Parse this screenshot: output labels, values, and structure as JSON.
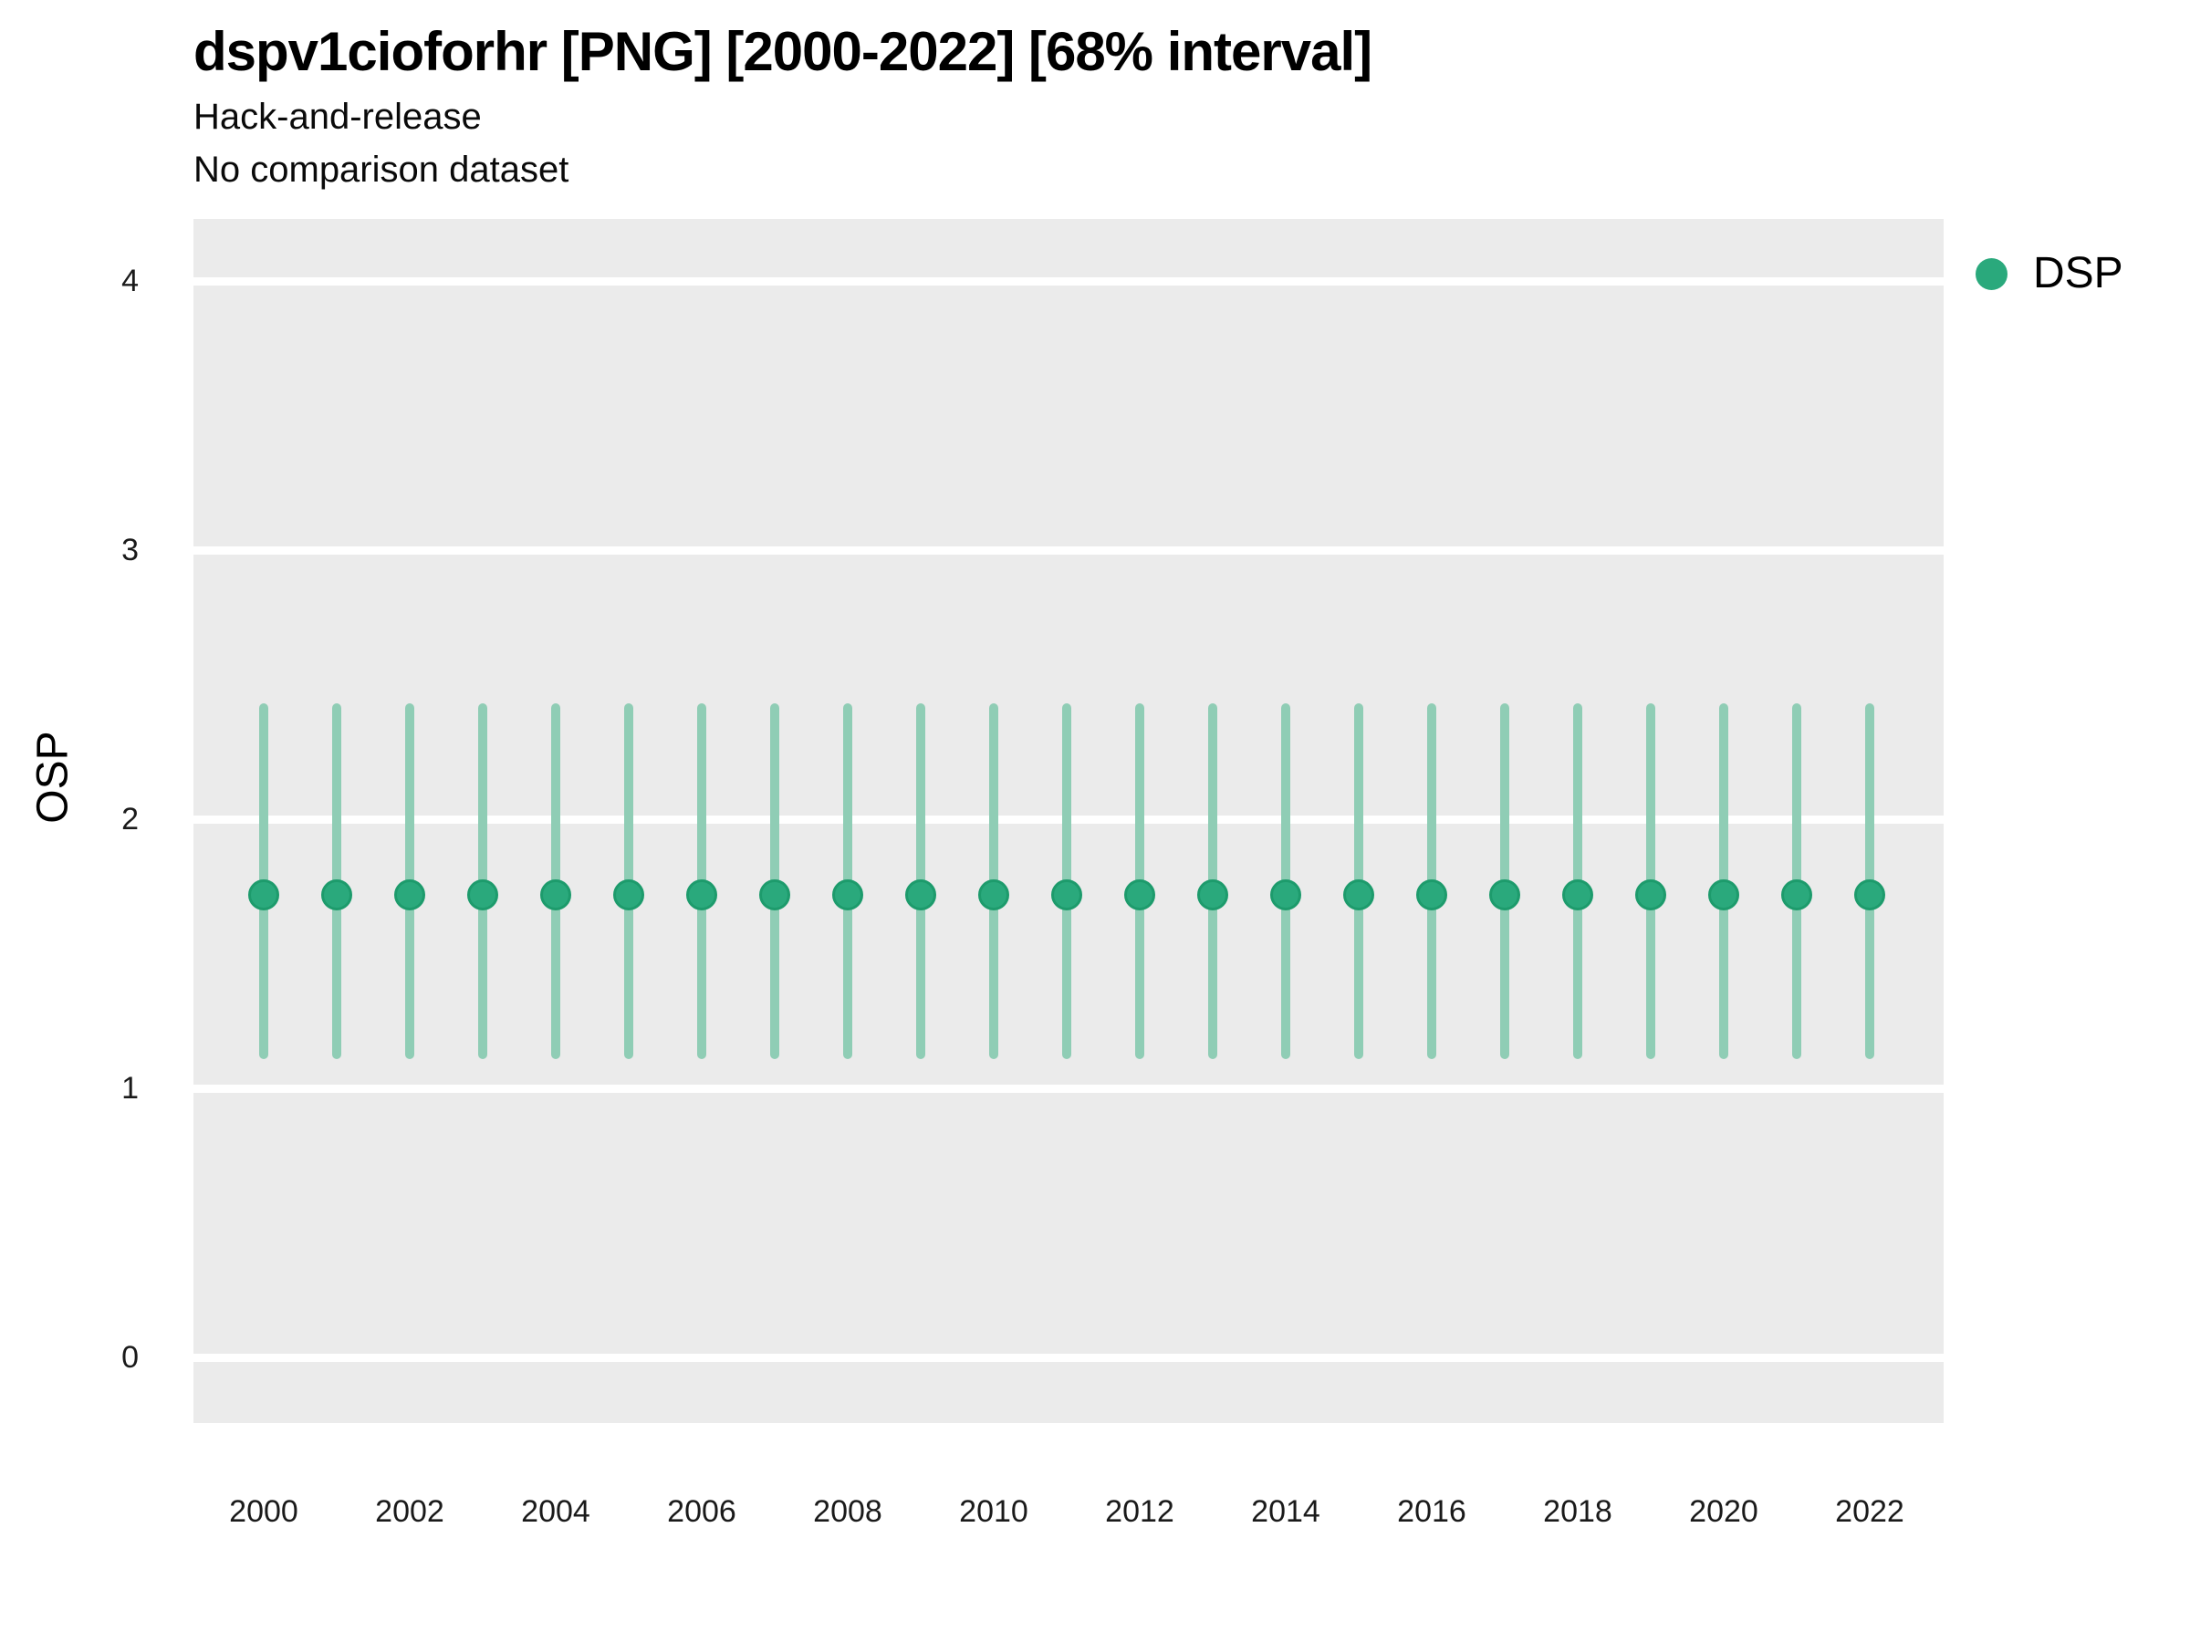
{
  "header": {
    "title": "dspv1cioforhr [PNG] [2000-2022] [68% interval]",
    "subtitle_line1": "Hack-and-release",
    "subtitle_line2": "No comparison dataset"
  },
  "legend": {
    "label": "DSP",
    "position": "right"
  },
  "axes": {
    "y_title": "OSP",
    "y_tick_labels": [
      "0",
      "1",
      "2",
      "3",
      "4"
    ],
    "x_tick_labels": [
      "2000",
      "2002",
      "2004",
      "2006",
      "2008",
      "2010",
      "2012",
      "2014",
      "2016",
      "2018",
      "2020",
      "2022"
    ]
  },
  "colors": {
    "point_fill": "#2AA97C",
    "point_border": "#1D9B6C",
    "interval_bar": "#8FCDB5",
    "panel_background": "#EBEBEB",
    "gridline": "#FFFFFF",
    "text": "#000000"
  },
  "chart_data": {
    "type": "scatter",
    "title": "dspv1cioforhr [PNG] [2000-2022] [68% interval]",
    "subtitle": "Hack-and-release / No comparison dataset",
    "interval": "68%",
    "xlabel": "",
    "ylabel": "OSP",
    "ylim": [
      -0.24,
      4.23
    ],
    "yticks": [
      0,
      1,
      2,
      3,
      4
    ],
    "xticks": [
      2000,
      2002,
      2004,
      2006,
      2008,
      2010,
      2012,
      2014,
      2016,
      2018,
      2020,
      2022
    ],
    "grid": "horizontal-major-white-on-gray",
    "legend_position": "right",
    "series": [
      {
        "name": "DSP",
        "x": [
          2000,
          2001,
          2002,
          2003,
          2004,
          2005,
          2006,
          2007,
          2008,
          2009,
          2010,
          2011,
          2012,
          2013,
          2014,
          2015,
          2016,
          2017,
          2018,
          2019,
          2020,
          2021,
          2022
        ],
        "y": [
          1.72,
          1.72,
          1.72,
          1.72,
          1.72,
          1.72,
          1.72,
          1.72,
          1.72,
          1.72,
          1.72,
          1.72,
          1.72,
          1.72,
          1.72,
          1.72,
          1.72,
          1.72,
          1.72,
          1.72,
          1.72,
          1.72,
          1.72
        ],
        "y_lower": [
          1.11,
          1.11,
          1.11,
          1.11,
          1.11,
          1.11,
          1.11,
          1.11,
          1.11,
          1.11,
          1.11,
          1.11,
          1.11,
          1.11,
          1.11,
          1.11,
          1.11,
          1.11,
          1.11,
          1.11,
          1.11,
          1.11,
          1.11
        ],
        "y_upper": [
          2.43,
          2.43,
          2.43,
          2.43,
          2.43,
          2.43,
          2.43,
          2.43,
          2.43,
          2.43,
          2.43,
          2.43,
          2.43,
          2.43,
          2.43,
          2.43,
          2.43,
          2.43,
          2.43,
          2.43,
          2.43,
          2.43,
          2.43
        ]
      }
    ]
  }
}
